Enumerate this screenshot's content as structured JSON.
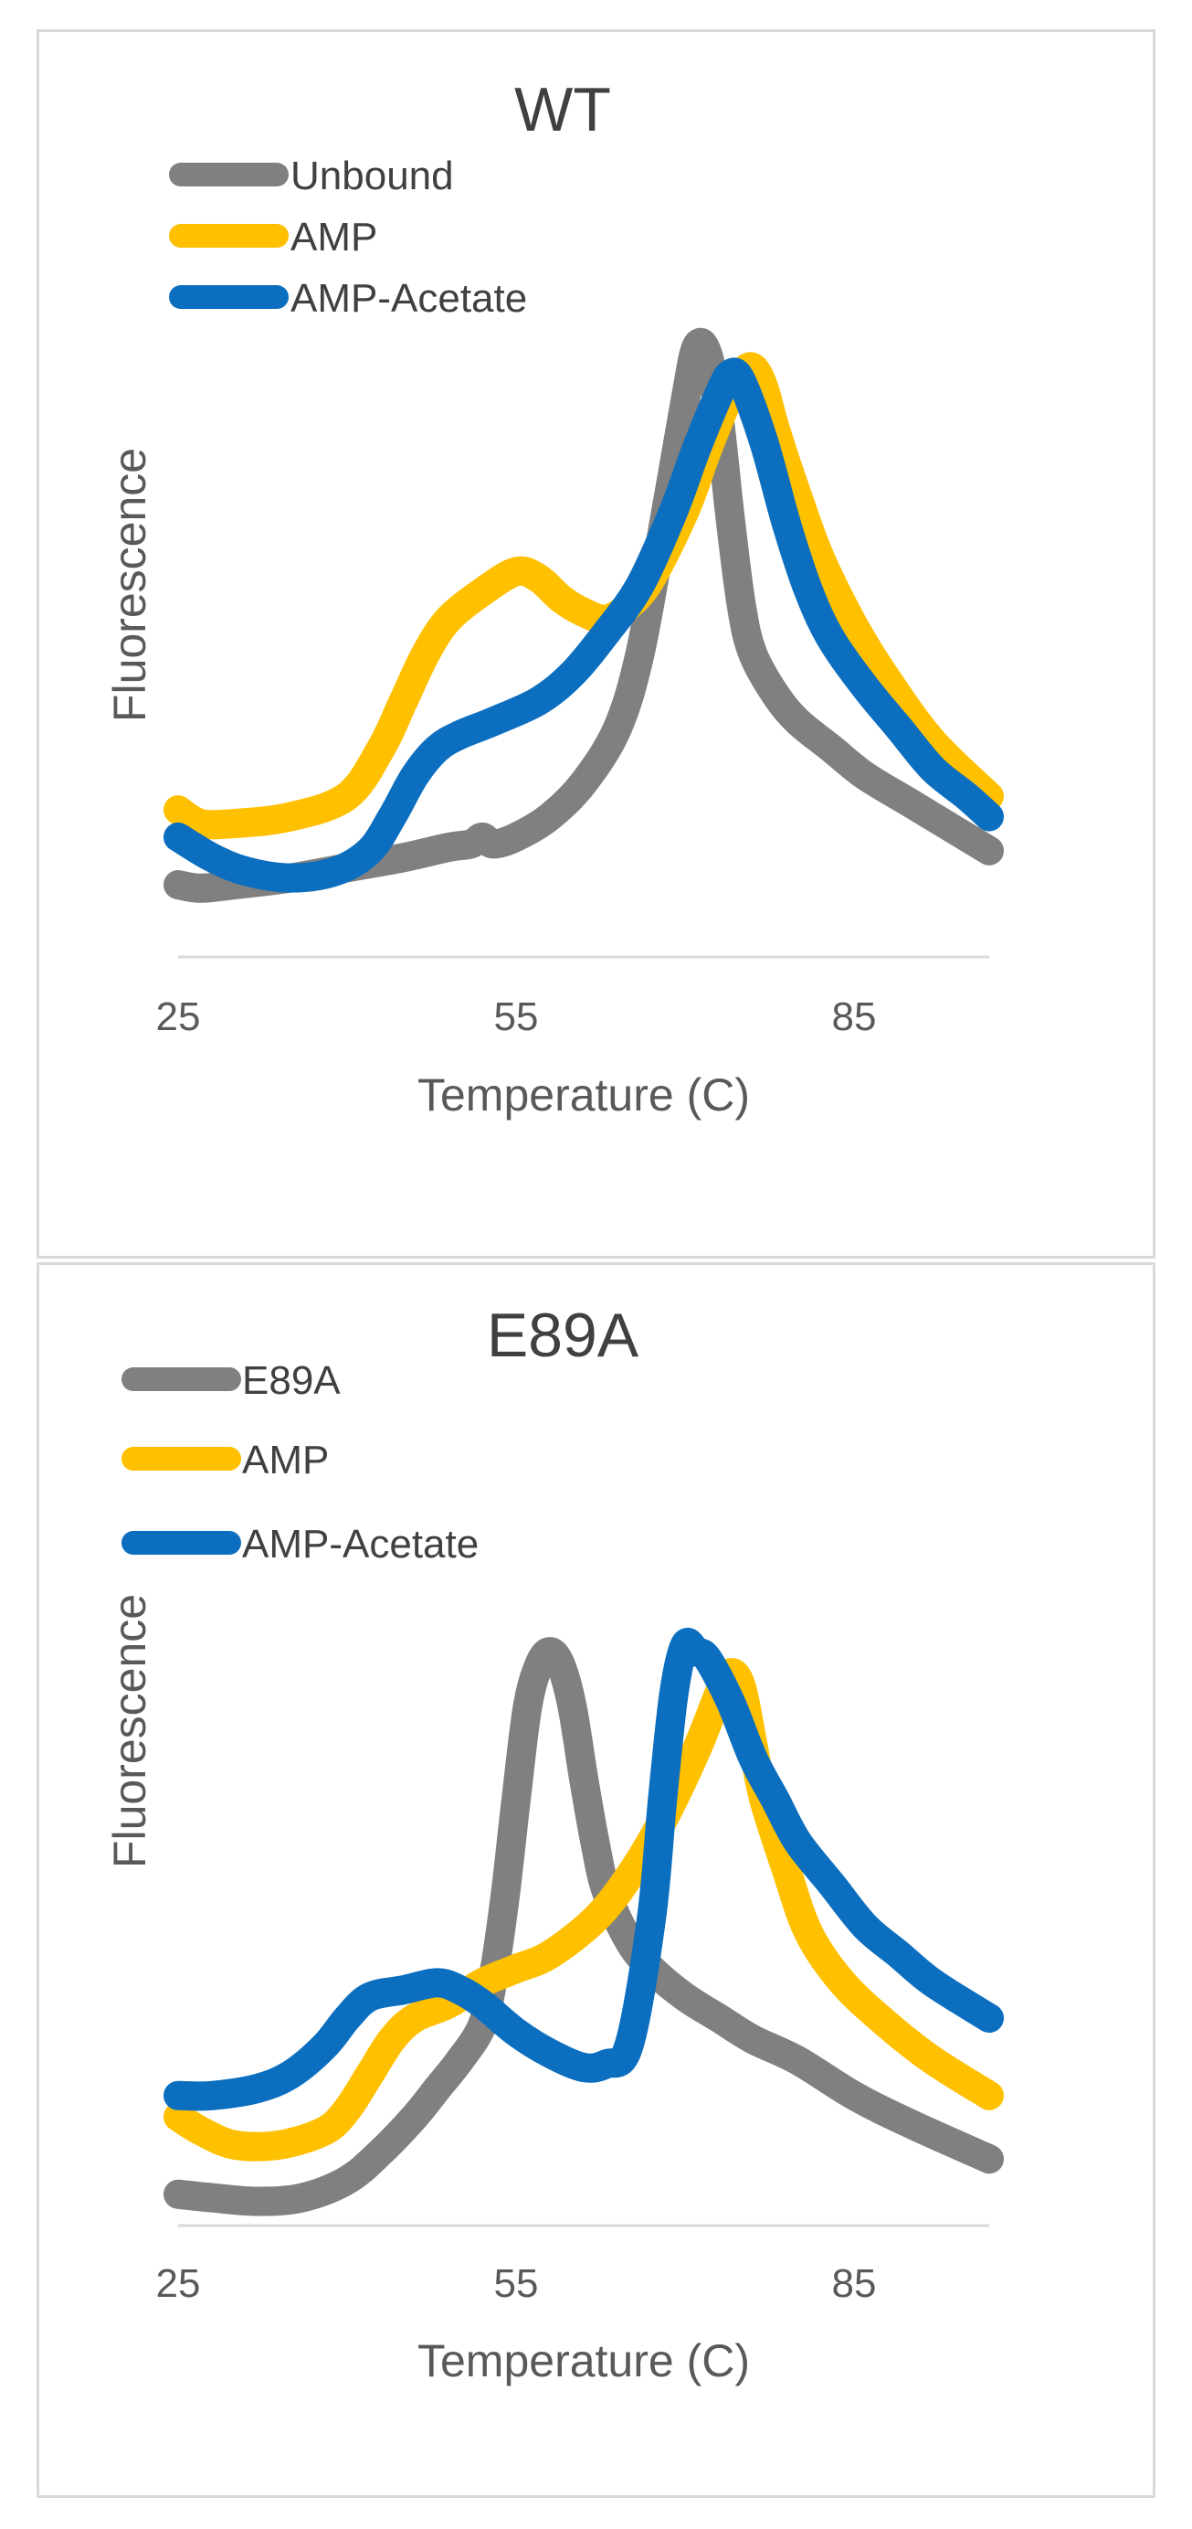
{
  "chart_data": [
    {
      "type": "line",
      "title": "WT",
      "xlabel": "Temperature (C)",
      "ylabel": "Fluorescence",
      "xlim": [
        25,
        97
      ],
      "ylim": [
        0,
        100
      ],
      "xticks": [
        "25",
        "55",
        "85"
      ],
      "xtick_values": [
        25,
        55,
        85
      ],
      "grid": false,
      "legend_position": "top-left",
      "y_axis_labels": false,
      "series": [
        {
          "name": "Unbound",
          "color": "#808080",
          "points": [
            [
              25,
              11
            ],
            [
              27,
              10.5
            ],
            [
              30,
              11
            ],
            [
              35,
              12
            ],
            [
              40,
              13.5
            ],
            [
              45,
              15
            ],
            [
              49,
              16.5
            ],
            [
              51,
              17
            ],
            [
              52,
              18
            ],
            [
              53,
              17
            ],
            [
              55,
              18
            ],
            [
              58,
              21
            ],
            [
              61,
              26
            ],
            [
              64,
              34
            ],
            [
              66,
              45
            ],
            [
              68,
              63
            ],
            [
              70,
              82
            ],
            [
              71,
              90
            ],
            [
              72,
              89
            ],
            [
              73,
              80
            ],
            [
              74,
              65
            ],
            [
              75,
              52
            ],
            [
              76,
              45
            ],
            [
              78,
              39
            ],
            [
              80,
              35
            ],
            [
              83,
              31
            ],
            [
              86,
              27
            ],
            [
              90,
              23
            ],
            [
              94,
              19
            ],
            [
              97,
              16
            ]
          ]
        },
        {
          "name": "AMP",
          "color": "#ffc000",
          "points": [
            [
              25,
              22
            ],
            [
              27,
              20
            ],
            [
              30,
              20
            ],
            [
              35,
              21
            ],
            [
              40,
              24
            ],
            [
              43,
              31
            ],
            [
              45,
              38
            ],
            [
              47,
              45
            ],
            [
              49,
              50
            ],
            [
              52,
              54
            ],
            [
              55,
              57
            ],
            [
              57,
              56
            ],
            [
              59,
              53
            ],
            [
              61,
              51
            ],
            [
              63,
              50
            ],
            [
              65,
              52
            ],
            [
              67,
              56
            ],
            [
              70,
              66
            ],
            [
              72,
              75
            ],
            [
              74,
              83
            ],
            [
              75,
              86
            ],
            [
              76,
              87
            ],
            [
              77,
              84
            ],
            [
              78,
              78
            ],
            [
              80,
              68
            ],
            [
              82,
              59
            ],
            [
              85,
              49
            ],
            [
              88,
              41
            ],
            [
              92,
              32
            ],
            [
              97,
              24
            ]
          ]
        },
        {
          "name": "AMP-Acetate",
          "color": "#0b6ebf",
          "points": [
            [
              25,
              18
            ],
            [
              28,
              15
            ],
            [
              31,
              13
            ],
            [
              35,
              12
            ],
            [
              39,
              13
            ],
            [
              42,
              16
            ],
            [
              44,
              21
            ],
            [
              46,
              27
            ],
            [
              48,
              31
            ],
            [
              50,
              33
            ],
            [
              53,
              35
            ],
            [
              57,
              38
            ],
            [
              60,
              42
            ],
            [
              63,
              48
            ],
            [
              66,
              55
            ],
            [
              69,
              66
            ],
            [
              71,
              75
            ],
            [
              73,
              83
            ],
            [
              74,
              86
            ],
            [
              75,
              85
            ],
            [
              77,
              76
            ],
            [
              79,
              64
            ],
            [
              81,
              54
            ],
            [
              83,
              47
            ],
            [
              86,
              40
            ],
            [
              89,
              34
            ],
            [
              92,
              28
            ],
            [
              95,
              24
            ],
            [
              97,
              21
            ]
          ]
        }
      ]
    },
    {
      "type": "line",
      "title": "E89A",
      "xlabel": "Temperature (C)",
      "ylabel": "Fluorescence",
      "xlim": [
        25,
        97
      ],
      "ylim": [
        0,
        100
      ],
      "xticks": [
        "25",
        "55",
        "85"
      ],
      "xtick_values": [
        25,
        55,
        85
      ],
      "grid": false,
      "legend_position": "top-left",
      "y_axis_labels": false,
      "series": [
        {
          "name": "E89A",
          "color": "#808080",
          "points": [
            [
              25,
              6
            ],
            [
              28,
              5.5
            ],
            [
              32,
              5
            ],
            [
              36,
              5.5
            ],
            [
              40,
              8
            ],
            [
              43,
              12
            ],
            [
              46,
              17
            ],
            [
              48,
              21
            ],
            [
              50,
              25
            ],
            [
              52,
              30
            ],
            [
              53,
              37
            ],
            [
              54,
              48
            ],
            [
              55,
              62
            ],
            [
              56,
              75
            ],
            [
              57,
              81
            ],
            [
              58,
              83
            ],
            [
              59,
              81
            ],
            [
              60,
              75
            ],
            [
              61,
              65
            ],
            [
              62,
              56
            ],
            [
              63,
              49
            ],
            [
              65,
              42
            ],
            [
              67,
              38
            ],
            [
              70,
              34
            ],
            [
              73,
              31
            ],
            [
              76,
              28
            ],
            [
              80,
              25
            ],
            [
              85,
              20
            ],
            [
              90,
              16
            ],
            [
              97,
              11
            ]
          ]
        },
        {
          "name": "AMP",
          "color": "#ffc000",
          "points": [
            [
              25,
              17
            ],
            [
              27,
              15
            ],
            [
              30,
              13
            ],
            [
              34,
              13
            ],
            [
              38,
              15
            ],
            [
              40,
              18
            ],
            [
              42,
              23
            ],
            [
              44,
              28
            ],
            [
              46,
              31
            ],
            [
              49,
              33
            ],
            [
              52,
              36
            ],
            [
              55,
              38
            ],
            [
              58,
              40
            ],
            [
              62,
              45
            ],
            [
              65,
              51
            ],
            [
              68,
              59
            ],
            [
              71,
              69
            ],
            [
              73,
              77
            ],
            [
              74,
              80
            ],
            [
              75,
              78
            ],
            [
              76,
              70
            ],
            [
              77,
              62
            ],
            [
              79,
              52
            ],
            [
              81,
              43
            ],
            [
              84,
              36
            ],
            [
              88,
              30
            ],
            [
              92,
              25
            ],
            [
              97,
              20
            ]
          ]
        },
        {
          "name": "AMP-Acetate",
          "color": "#0b6ebf",
          "points": [
            [
              25,
              20
            ],
            [
              28,
              20
            ],
            [
              32,
              21
            ],
            [
              35,
              23
            ],
            [
              38,
              27
            ],
            [
              40,
              31
            ],
            [
              42,
              34
            ],
            [
              45,
              35
            ],
            [
              48,
              36
            ],
            [
              50,
              35
            ],
            [
              52,
              33
            ],
            [
              55,
              29
            ],
            [
              58,
              26
            ],
            [
              61,
              24
            ],
            [
              63,
              24.5
            ],
            [
              65,
              27
            ],
            [
              67,
              45
            ],
            [
              68,
              62
            ],
            [
              69,
              77
            ],
            [
              70,
              84
            ],
            [
              71,
              83
            ],
            [
              72,
              82
            ],
            [
              74,
              76
            ],
            [
              76,
              68
            ],
            [
              78,
              62
            ],
            [
              80,
              56
            ],
            [
              83,
              50
            ],
            [
              86,
              44
            ],
            [
              89,
              40
            ],
            [
              92,
              36
            ],
            [
              97,
              31
            ]
          ]
        }
      ]
    }
  ]
}
